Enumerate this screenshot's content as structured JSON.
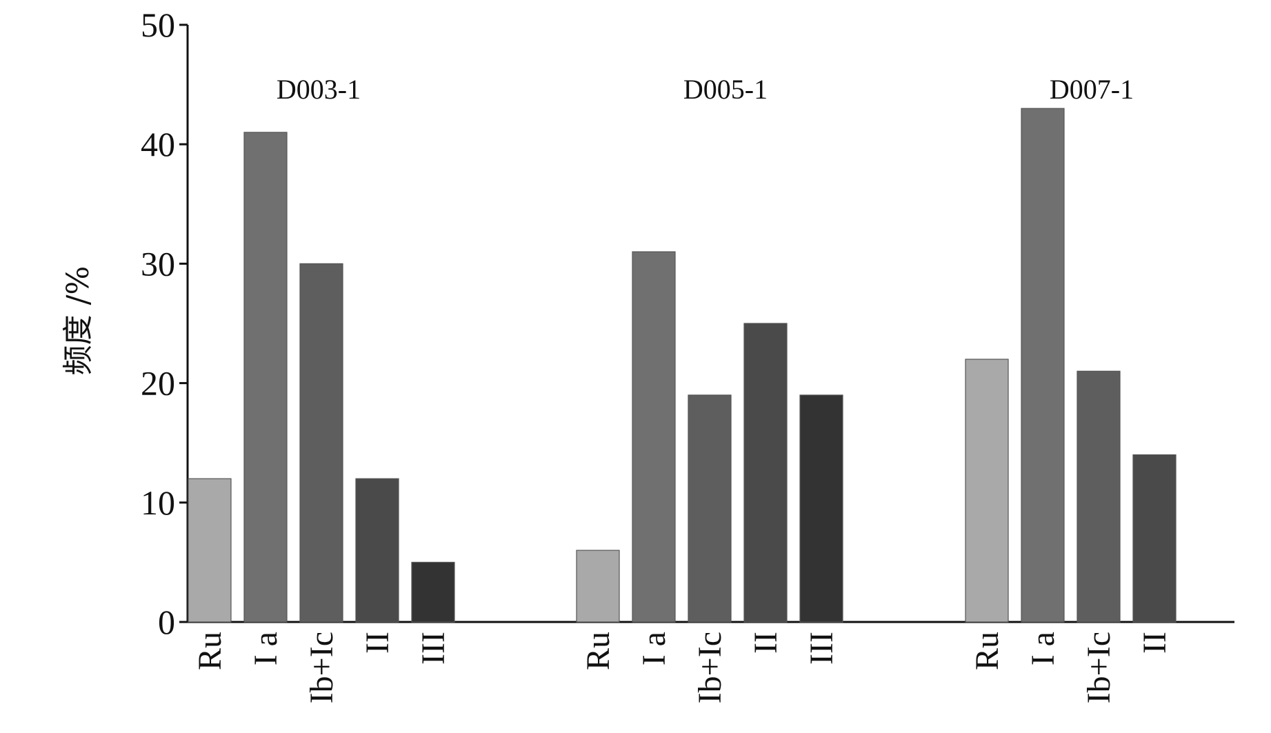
{
  "chart_data": {
    "type": "bar",
    "ylabel": "频度 /%",
    "ylim": [
      0,
      50
    ],
    "yticks": [
      0,
      10,
      20,
      30,
      40,
      50
    ],
    "grid": false,
    "legend": "none",
    "groups": [
      {
        "name": "D003-1",
        "categories": [
          "Ru",
          "I a",
          "Ib+Ic",
          "II",
          "III"
        ],
        "values": [
          12,
          41,
          30,
          12,
          5
        ]
      },
      {
        "name": "D005-1",
        "categories": [
          "Ru",
          "I a",
          "Ib+Ic",
          "II",
          "III"
        ],
        "values": [
          6,
          31,
          19,
          25,
          19
        ]
      },
      {
        "name": "D007-1",
        "categories": [
          "Ru",
          "I a",
          "Ib+Ic",
          "II"
        ],
        "values": [
          22,
          43,
          21,
          14
        ]
      }
    ],
    "category_colors": {
      "Ru": "#a9a9a9",
      "I a": "#707070",
      "Ib+Ic": "#5e5e5e",
      "II": "#4a4a4a",
      "III": "#333333"
    }
  }
}
